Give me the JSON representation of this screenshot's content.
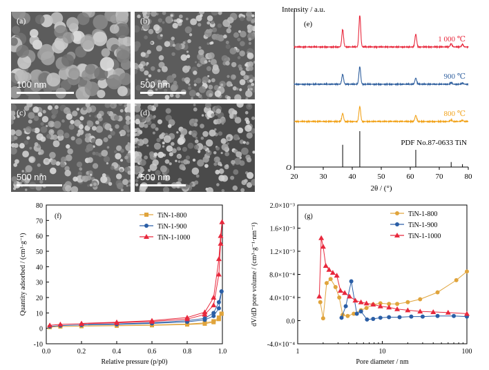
{
  "sem_panels": [
    {
      "label": "(a)",
      "scale": "100 nm",
      "scale_bar_fraction": 0.48
    },
    {
      "label": "(b)",
      "scale": "500 nm",
      "scale_bar_fraction": 0.38
    },
    {
      "label": "(c)",
      "scale": "500 nm",
      "scale_bar_fraction": 0.38
    },
    {
      "label": "(d)",
      "scale": "500 nm",
      "scale_bar_fraction": 0.38
    }
  ],
  "chart_data": [
    {
      "panel_label": "(e)",
      "type": "line",
      "ylabel": "Intensity / a.u.",
      "xlabel": "2θ / (°)",
      "xlim": [
        20,
        80
      ],
      "xticks": [
        20,
        30,
        40,
        50,
        60,
        70,
        80
      ],
      "origin_label": "O",
      "peak_positions": [
        36.7,
        42.6,
        61.9,
        74.1,
        78.0
      ],
      "series": [
        {
          "name": "1 000 ℃",
          "color": "#e8283c",
          "peak_heights": [
            0.55,
            1.0,
            0.4,
            0.1,
            0.08
          ]
        },
        {
          "name": "900 ℃",
          "color": "#2f5f9e",
          "peak_heights": [
            0.48,
            0.85,
            0.3,
            0.08,
            0.06
          ]
        },
        {
          "name": "800 ℃",
          "color": "#f2a31b",
          "peak_heights": [
            0.42,
            0.78,
            0.32,
            0.08,
            0.06
          ]
        }
      ],
      "reference": {
        "name": "PDF No.87-0633   TiN",
        "heights": [
          0.62,
          1.0,
          0.48,
          0.14,
          0.08
        ]
      }
    },
    {
      "panel_label": "(f)",
      "type": "line",
      "xlabel": "Relative pressure (p/p0)",
      "ylabel": "Quantity adsorbed / (cm³·g⁻¹)",
      "xlim": [
        0.0,
        1.0
      ],
      "ylim": [
        -10,
        80
      ],
      "xticks": [
        "0.0",
        "0.2",
        "0.4",
        "0.6",
        "0.8",
        "1.0"
      ],
      "yticks": [
        -10,
        0,
        10,
        20,
        30,
        40,
        50,
        60,
        70,
        80
      ],
      "series": [
        {
          "name": "TiN-1-800",
          "color": "#e0a43c",
          "marker": "square",
          "adsorption": [
            [
              0.02,
              0.8
            ],
            [
              0.08,
              1.2
            ],
            [
              0.2,
              1.4
            ],
            [
              0.4,
              1.7
            ],
            [
              0.6,
              2.0
            ],
            [
              0.8,
              2.5
            ],
            [
              0.9,
              3.0
            ],
            [
              0.95,
              4.0
            ],
            [
              0.98,
              6.0
            ],
            [
              0.995,
              9.5
            ]
          ],
          "desorption": [
            [
              0.995,
              9.5
            ],
            [
              0.98,
              7.0
            ],
            [
              0.95,
              4.6
            ],
            [
              0.9,
              3.5
            ],
            [
              0.8,
              2.8
            ],
            [
              0.6,
              2.2
            ],
            [
              0.4,
              1.8
            ],
            [
              0.2,
              1.5
            ]
          ]
        },
        {
          "name": "TiN-1-900",
          "color": "#2a5ea6",
          "marker": "circle",
          "adsorption": [
            [
              0.02,
              1.2
            ],
            [
              0.08,
              1.8
            ],
            [
              0.2,
              2.2
            ],
            [
              0.4,
              2.6
            ],
            [
              0.6,
              3.2
            ],
            [
              0.8,
              4.2
            ],
            [
              0.9,
              5.5
            ],
            [
              0.95,
              8.0
            ],
            [
              0.98,
              13.0
            ],
            [
              0.995,
              24.0
            ]
          ],
          "desorption": [
            [
              0.995,
              24.0
            ],
            [
              0.98,
              17.0
            ],
            [
              0.95,
              10.0
            ],
            [
              0.9,
              6.5
            ],
            [
              0.8,
              5.0
            ],
            [
              0.6,
              3.6
            ],
            [
              0.4,
              2.9
            ],
            [
              0.2,
              2.4
            ]
          ]
        },
        {
          "name": "TiN-1-1000",
          "color": "#e8283c",
          "marker": "triangle",
          "adsorption": [
            [
              0.02,
              2.0
            ],
            [
              0.08,
              2.6
            ],
            [
              0.2,
              3.0
            ],
            [
              0.4,
              3.6
            ],
            [
              0.6,
              4.4
            ],
            [
              0.8,
              6.0
            ],
            [
              0.9,
              9.0
            ],
            [
              0.95,
              15.0
            ],
            [
              0.98,
              35.0
            ],
            [
              0.99,
              55.0
            ],
            [
              0.998,
              69.0
            ]
          ],
          "desorption": [
            [
              0.998,
              69.0
            ],
            [
              0.99,
              60.0
            ],
            [
              0.98,
              45.0
            ],
            [
              0.95,
              20.0
            ],
            [
              0.9,
              10.5
            ],
            [
              0.8,
              7.0
            ],
            [
              0.6,
              5.0
            ],
            [
              0.4,
              4.0
            ],
            [
              0.2,
              3.2
            ]
          ]
        }
      ]
    },
    {
      "panel_label": "(g)",
      "type": "line",
      "xlabel": "Pore diameter / nm",
      "ylabel": "dV/dD pore volume / (cm³·g⁻¹·nm⁻¹)",
      "x_scale": "log",
      "xlim": [
        1,
        100
      ],
      "ylim": [
        -0.0004,
        0.002
      ],
      "xticks": [
        1,
        10,
        100
      ],
      "yticks": [
        "-4.0×10⁻⁴",
        "0.0",
        "4.0×10⁻⁴",
        "8.0×10⁻⁴",
        "1.2×10⁻³",
        "1.6×10⁻³",
        "2.0×10⁻³"
      ],
      "series": [
        {
          "name": "TiN-1-800",
          "color": "#e0a43c",
          "marker": "circle",
          "points": [
            [
              1.85,
              0.00032
            ],
            [
              2.0,
              4e-05
            ],
            [
              2.2,
              0.00065
            ],
            [
              2.45,
              0.00072
            ],
            [
              2.8,
              0.00058
            ],
            [
              3.1,
              0.0004
            ],
            [
              3.4,
              0.0001
            ],
            [
              3.9,
              8e-05
            ],
            [
              4.6,
              0.00012
            ],
            [
              5.6,
              0.00018
            ],
            [
              6.5,
              0.00022
            ],
            [
              7.8,
              0.00028
            ],
            [
              9.5,
              0.0003
            ],
            [
              12,
              0.00029
            ],
            [
              15,
              0.00029
            ],
            [
              20,
              0.00032
            ],
            [
              28,
              0.00037
            ],
            [
              45,
              0.00049
            ],
            [
              75,
              0.0007
            ],
            [
              100,
              0.00085
            ]
          ]
        },
        {
          "name": "TiN-1-900",
          "color": "#2a5ea6",
          "marker": "circle",
          "points": [
            [
              3.3,
              5e-05
            ],
            [
              3.7,
              0.00025
            ],
            [
              4.3,
              0.00068
            ],
            [
              5.0,
              0.00012
            ],
            [
              5.6,
              0.00016
            ],
            [
              6.6,
              2e-05
            ],
            [
              7.8,
              3e-05
            ],
            [
              9.5,
              5e-05
            ],
            [
              12,
              6e-05
            ],
            [
              16,
              6e-05
            ],
            [
              22,
              7e-05
            ],
            [
              30,
              7e-05
            ],
            [
              45,
              8e-05
            ],
            [
              70,
              8e-05
            ],
            [
              100,
              7e-05
            ]
          ]
        },
        {
          "name": "TiN-1-1000",
          "color": "#e8283c",
          "marker": "triangle",
          "points": [
            [
              1.8,
              0.00042
            ],
            [
              1.9,
              0.00143
            ],
            [
              2.0,
              0.00128
            ],
            [
              2.15,
              0.00095
            ],
            [
              2.35,
              0.00088
            ],
            [
              2.6,
              0.00083
            ],
            [
              2.9,
              0.00078
            ],
            [
              3.2,
              0.00052
            ],
            [
              3.6,
              0.00048
            ],
            [
              4.1,
              0.00042
            ],
            [
              4.8,
              0.00035
            ],
            [
              5.6,
              0.00032
            ],
            [
              6.5,
              0.0003
            ],
            [
              7.8,
              0.00028
            ],
            [
              9.5,
              0.00025
            ],
            [
              12,
              0.00023
            ],
            [
              15,
              0.0002
            ],
            [
              20,
              0.00018
            ],
            [
              28,
              0.00016
            ],
            [
              40,
              0.00015
            ],
            [
              60,
              0.00014
            ],
            [
              100,
              0.00012
            ]
          ]
        }
      ]
    }
  ]
}
